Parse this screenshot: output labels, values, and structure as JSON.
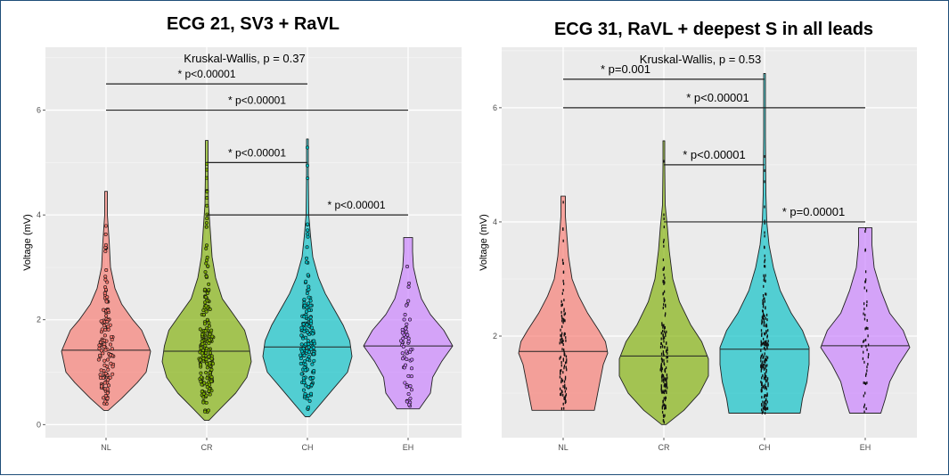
{
  "chart_data": [
    {
      "type": "violin",
      "title": "ECG 21, SV3 + RaVL",
      "xlabel": "",
      "ylabel": "Voltage (mV)",
      "categories": [
        "NL",
        "CR",
        "CH",
        "EH"
      ],
      "yticks": [
        0,
        2,
        4,
        6
      ],
      "ylim": [
        -0.25,
        7.2
      ],
      "grid": true,
      "legend": "none",
      "colors": [
        "#F8766D",
        "#7CAE00",
        "#00BFC4",
        "#C77CFF"
      ],
      "overall_test": "Kruskal-Wallis, p = 0.37",
      "series": [
        {
          "category": "NL",
          "min": 0.27,
          "max": 4.45,
          "median": 1.42,
          "density": [
            [
              0.27,
              0.05
            ],
            [
              0.5,
              0.35
            ],
            [
              0.8,
              0.7
            ],
            [
              1.0,
              0.9
            ],
            [
              1.2,
              0.95
            ],
            [
              1.4,
              1.0
            ],
            [
              1.6,
              0.9
            ],
            [
              1.8,
              0.8
            ],
            [
              2.0,
              0.6
            ],
            [
              2.3,
              0.35
            ],
            [
              2.6,
              0.2
            ],
            [
              3.0,
              0.1
            ],
            [
              3.5,
              0.07
            ],
            [
              4.0,
              0.03
            ],
            [
              4.45,
              0.03
            ]
          ]
        },
        {
          "category": "CR",
          "min": 0.08,
          "max": 5.42,
          "median": 1.4,
          "density": [
            [
              0.08,
              0.05
            ],
            [
              0.3,
              0.3
            ],
            [
              0.6,
              0.65
            ],
            [
              0.9,
              0.9
            ],
            [
              1.2,
              1.0
            ],
            [
              1.5,
              0.95
            ],
            [
              1.8,
              0.85
            ],
            [
              2.1,
              0.6
            ],
            [
              2.4,
              0.35
            ],
            [
              2.8,
              0.2
            ],
            [
              3.2,
              0.12
            ],
            [
              3.7,
              0.08
            ],
            [
              4.2,
              0.04
            ],
            [
              4.8,
              0.03
            ],
            [
              5.42,
              0.03
            ]
          ]
        },
        {
          "category": "CH",
          "min": 0.15,
          "max": 5.45,
          "median": 1.48,
          "density": [
            [
              0.15,
              0.05
            ],
            [
              0.4,
              0.3
            ],
            [
              0.7,
              0.6
            ],
            [
              1.0,
              0.9
            ],
            [
              1.3,
              1.0
            ],
            [
              1.6,
              0.95
            ],
            [
              1.9,
              0.8
            ],
            [
              2.2,
              0.6
            ],
            [
              2.5,
              0.4
            ],
            [
              2.8,
              0.25
            ],
            [
              3.2,
              0.12
            ],
            [
              3.6,
              0.07
            ],
            [
              4.0,
              0.03
            ],
            [
              4.8,
              0.02
            ],
            [
              5.45,
              0.02
            ]
          ]
        },
        {
          "category": "EH",
          "min": 0.3,
          "max": 3.57,
          "median": 1.5,
          "density": [
            [
              0.3,
              0.25
            ],
            [
              0.6,
              0.5
            ],
            [
              0.9,
              0.55
            ],
            [
              1.2,
              0.75
            ],
            [
              1.5,
              1.0
            ],
            [
              1.8,
              0.8
            ],
            [
              2.1,
              0.5
            ],
            [
              2.4,
              0.3
            ],
            [
              2.7,
              0.2
            ],
            [
              3.0,
              0.12
            ],
            [
              3.3,
              0.1
            ],
            [
              3.57,
              0.1
            ]
          ]
        }
      ],
      "comparisons": [
        {
          "groups": [
            "NL",
            "CH"
          ],
          "y": 6.5,
          "label": "* p<0.00001"
        },
        {
          "groups": [
            "NL",
            "EH"
          ],
          "y": 6.0,
          "label": "* p<0.00001"
        },
        {
          "groups": [
            "CR",
            "CH"
          ],
          "y": 5.0,
          "label": "* p<0.00001"
        },
        {
          "groups": [
            "CR",
            "EH"
          ],
          "y": 4.0,
          "label": "* p<0.00001"
        }
      ]
    },
    {
      "type": "violin",
      "title": "ECG 31, RaVL + deepest S in all leads",
      "xlabel": "",
      "ylabel": "Voltage (mV)",
      "categories": [
        "NL",
        "CR",
        "CH",
        "EH"
      ],
      "yticks": [
        2,
        4,
        6
      ],
      "ylim": [
        0.22,
        7.06
      ],
      "grid": true,
      "legend": "none",
      "colors": [
        "#F8766D",
        "#7CAE00",
        "#00BFC4",
        "#C77CFF"
      ],
      "overall_test": "Kruskal-Wallis, p = 0.53",
      "series": [
        {
          "category": "NL",
          "min": 0.7,
          "max": 4.45,
          "median": 1.73,
          "density": [
            [
              0.7,
              0.7
            ],
            [
              0.9,
              0.75
            ],
            [
              1.1,
              0.8
            ],
            [
              1.3,
              0.85
            ],
            [
              1.5,
              0.9
            ],
            [
              1.7,
              1.0
            ],
            [
              1.9,
              0.95
            ],
            [
              2.1,
              0.8
            ],
            [
              2.4,
              0.55
            ],
            [
              2.7,
              0.35
            ],
            [
              3.0,
              0.2
            ],
            [
              3.4,
              0.12
            ],
            [
              3.8,
              0.08
            ],
            [
              4.1,
              0.05
            ],
            [
              4.45,
              0.05
            ]
          ]
        },
        {
          "category": "CR",
          "min": 0.45,
          "max": 5.42,
          "median": 1.65,
          "density": [
            [
              0.45,
              0.05
            ],
            [
              0.7,
              0.45
            ],
            [
              1.0,
              0.8
            ],
            [
              1.3,
              1.0
            ],
            [
              1.6,
              1.0
            ],
            [
              1.9,
              0.85
            ],
            [
              2.2,
              0.6
            ],
            [
              2.6,
              0.35
            ],
            [
              3.0,
              0.2
            ],
            [
              3.5,
              0.12
            ],
            [
              3.9,
              0.08
            ],
            [
              4.3,
              0.03
            ],
            [
              5.0,
              0.02
            ],
            [
              5.42,
              0.02
            ]
          ]
        },
        {
          "category": "CH",
          "min": 0.65,
          "max": 6.6,
          "median": 1.77,
          "density": [
            [
              0.65,
              0.8
            ],
            [
              0.9,
              0.85
            ],
            [
              1.2,
              0.95
            ],
            [
              1.5,
              1.0
            ],
            [
              1.8,
              1.0
            ],
            [
              2.1,
              0.85
            ],
            [
              2.4,
              0.6
            ],
            [
              2.8,
              0.35
            ],
            [
              3.2,
              0.2
            ],
            [
              3.6,
              0.1
            ],
            [
              4.0,
              0.05
            ],
            [
              4.5,
              0.03
            ],
            [
              5.5,
              0.02
            ],
            [
              6.6,
              0.02
            ]
          ]
        },
        {
          "category": "EH",
          "min": 0.65,
          "max": 3.9,
          "median": 1.83,
          "density": [
            [
              0.65,
              0.35
            ],
            [
              0.9,
              0.45
            ],
            [
              1.2,
              0.55
            ],
            [
              1.5,
              0.75
            ],
            [
              1.8,
              1.0
            ],
            [
              2.1,
              0.85
            ],
            [
              2.4,
              0.55
            ],
            [
              2.8,
              0.35
            ],
            [
              3.2,
              0.2
            ],
            [
              3.6,
              0.15
            ],
            [
              3.9,
              0.15
            ]
          ]
        }
      ],
      "comparisons": [
        {
          "groups": [
            "NL",
            "CH"
          ],
          "y": 6.5,
          "label": "* p=0.001"
        },
        {
          "groups": [
            "NL",
            "EH"
          ],
          "y": 6.0,
          "label": "* p<0.00001"
        },
        {
          "groups": [
            "CR",
            "CH"
          ],
          "y": 5.0,
          "label": "* p<0.00001"
        },
        {
          "groups": [
            "CR",
            "EH"
          ],
          "y": 4.0,
          "label": "* p=0.00001"
        }
      ]
    }
  ]
}
